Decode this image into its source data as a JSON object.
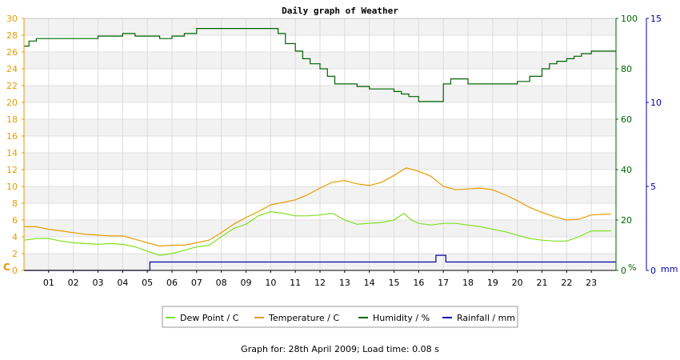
{
  "chart_data": {
    "type": "line",
    "title": "Daily graph of Weather",
    "x_ticks": [
      "01",
      "02",
      "03",
      "04",
      "05",
      "06",
      "07",
      "08",
      "09",
      "10",
      "11",
      "12",
      "13",
      "14",
      "15",
      "16",
      "17",
      "18",
      "19",
      "20",
      "21",
      "22",
      "23"
    ],
    "xlim": [
      0,
      24
    ],
    "axes": {
      "left": {
        "label": "C",
        "ylim": [
          0,
          30
        ],
        "ticks": [
          "0",
          "2",
          "4",
          "6",
          "8",
          "10",
          "12",
          "14",
          "16",
          "18",
          "20",
          "22",
          "24",
          "26",
          "28",
          "30"
        ],
        "color": "#e69b00"
      },
      "right1": {
        "label": "%",
        "ylim": [
          0,
          100
        ],
        "ticks": [
          "0",
          "20",
          "40",
          "60",
          "80",
          "100"
        ],
        "color": "#006400"
      },
      "right2": {
        "label": "mm",
        "ylim": [
          0,
          15
        ],
        "ticks": [
          "0",
          "5",
          "10",
          "15"
        ],
        "color": "#0000aa"
      }
    },
    "series": [
      {
        "name": "Dew Point / C",
        "axis": "left",
        "color": "#80e020",
        "step": false,
        "x": [
          0,
          0.5,
          1,
          1.5,
          2,
          2.5,
          3,
          3.5,
          4,
          4.5,
          5,
          5.5,
          6,
          6.5,
          7,
          7.5,
          8,
          8.5,
          9,
          9.5,
          10,
          10.5,
          11,
          11.5,
          12,
          12.5,
          13,
          13.5,
          14,
          14.5,
          15,
          15.4,
          15.7,
          16,
          16.5,
          17,
          17.5,
          18,
          18.5,
          19,
          19.5,
          20,
          20.5,
          21,
          21.5,
          22,
          22.5,
          23,
          23.8
        ],
        "y": [
          3.6,
          3.8,
          3.8,
          3.5,
          3.3,
          3.2,
          3.1,
          3.2,
          3.1,
          2.8,
          2.3,
          1.8,
          2.0,
          2.4,
          2.8,
          3.0,
          4.0,
          5.0,
          5.5,
          6.5,
          7.0,
          6.8,
          6.5,
          6.5,
          6.6,
          6.8,
          6.0,
          5.5,
          5.6,
          5.7,
          6.0,
          6.8,
          6.0,
          5.6,
          5.4,
          5.6,
          5.6,
          5.4,
          5.2,
          4.9,
          4.6,
          4.2,
          3.8,
          3.6,
          3.5,
          3.5,
          4.0,
          4.7,
          4.7
        ]
      },
      {
        "name": "Temperature / C",
        "axis": "left",
        "color": "#e69b00",
        "step": false,
        "x": [
          0,
          0.5,
          1,
          1.5,
          2,
          2.5,
          3,
          3.5,
          4,
          4.5,
          5,
          5.5,
          6,
          6.5,
          7,
          7.5,
          8,
          8.5,
          9,
          9.5,
          10,
          10.5,
          11,
          11.5,
          12,
          12.5,
          13,
          13.5,
          14,
          14.5,
          15,
          15.5,
          16,
          16.5,
          17,
          17.5,
          18,
          18.5,
          19,
          19.5,
          20,
          20.5,
          21,
          21.5,
          22,
          22.5,
          23,
          23.8
        ],
        "y": [
          5.2,
          5.2,
          4.9,
          4.7,
          4.5,
          4.3,
          4.2,
          4.1,
          4.1,
          3.7,
          3.3,
          2.9,
          3.0,
          3.0,
          3.3,
          3.6,
          4.5,
          5.5,
          6.3,
          7.0,
          7.8,
          8.1,
          8.4,
          9.0,
          9.8,
          10.5,
          10.7,
          10.3,
          10.1,
          10.5,
          11.3,
          12.2,
          11.8,
          11.2,
          10.0,
          9.6,
          9.7,
          9.8,
          9.6,
          9.0,
          8.3,
          7.5,
          6.9,
          6.4,
          6.0,
          6.1,
          6.6,
          6.7
        ]
      },
      {
        "name": "Humidity / %",
        "axis": "right1",
        "color": "#006400",
        "step": true,
        "x": [
          0,
          0.2,
          0.5,
          1,
          1.5,
          2,
          2.5,
          3,
          3.5,
          4,
          4.5,
          5,
          5.5,
          6,
          6.5,
          7,
          7.5,
          8,
          8.5,
          9,
          9.5,
          10,
          10.3,
          10.6,
          11,
          11.3,
          11.6,
          12,
          12.3,
          12.6,
          13,
          13.5,
          14,
          14.5,
          15,
          15.3,
          15.6,
          16,
          16.3,
          16.6,
          17,
          17.3,
          17.6,
          18,
          18.5,
          19,
          19.5,
          20,
          20.5,
          21,
          21.3,
          21.6,
          22,
          22.3,
          22.6,
          23,
          23.8
        ],
        "y": [
          89,
          91,
          92,
          92,
          92,
          92,
          92,
          93,
          93,
          94,
          93,
          93,
          92,
          93,
          94,
          96,
          96,
          96,
          96,
          96,
          96,
          96,
          94,
          90,
          87,
          84,
          82,
          80,
          77,
          74,
          74,
          73,
          72,
          72,
          71,
          70,
          69,
          67,
          67,
          67,
          74,
          76,
          76,
          74,
          74,
          74,
          74,
          75,
          77,
          80,
          82,
          83,
          84,
          85,
          86,
          87,
          87
        ]
      },
      {
        "name": "Rainfall / mm",
        "axis": "right2",
        "color": "#0000aa",
        "step": true,
        "x": [
          0,
          5.1,
          16.7,
          17.1,
          24
        ],
        "y": [
          0,
          0.5,
          0.9,
          0.5,
          0.5
        ]
      }
    ],
    "legend": "bottom",
    "grid": true
  },
  "footer": "Graph for: 28th April 2009; Load time: 0.08 s"
}
